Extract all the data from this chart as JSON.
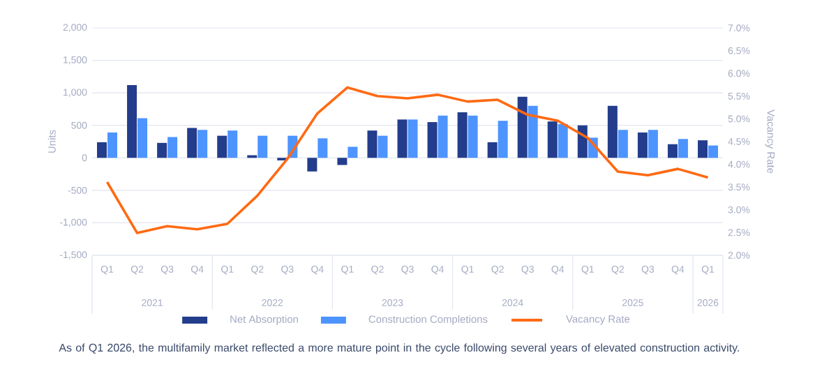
{
  "chart_data": {
    "type": "bar",
    "categories": [
      "Q1",
      "Q2",
      "Q3",
      "Q4",
      "Q1",
      "Q2",
      "Q3",
      "Q4",
      "Q1",
      "Q2",
      "Q3",
      "Q4",
      "Q1",
      "Q2",
      "Q3",
      "Q4",
      "Q1",
      "Q2",
      "Q3",
      "Q4",
      "Q1"
    ],
    "series": [
      {
        "name": "Net Absorption",
        "color": "#233d8c",
        "values": [
          240,
          1120,
          230,
          460,
          340,
          40,
          -40,
          -210,
          -110,
          420,
          590,
          550,
          700,
          240,
          940,
          560,
          500,
          800,
          390,
          210,
          270
        ]
      },
      {
        "name": "Construction Completions",
        "color": "#4d94ff",
        "values": [
          390,
          610,
          320,
          430,
          420,
          340,
          340,
          300,
          170,
          340,
          590,
          650,
          650,
          570,
          800,
          520,
          310,
          430,
          430,
          290,
          190
        ]
      },
      {
        "name": "Vacancy Rate",
        "color": "#ff6a13",
        "type": "line",
        "axis": "y2",
        "values": [
          3.61,
          2.49,
          2.64,
          2.57,
          2.69,
          3.31,
          4.12,
          5.12,
          5.69,
          5.5,
          5.45,
          5.53,
          5.38,
          5.42,
          5.09,
          4.96,
          4.58,
          3.84,
          3.76,
          3.9,
          3.71
        ]
      }
    ],
    "ylabel": "Units",
    "y2label": "Vacancy Rate",
    "ylim": [
      -1500,
      2000
    ],
    "yticks": [
      {
        "value": -1500,
        "label": "-1,500"
      },
      {
        "value": -1000,
        "label": "-1,000"
      },
      -500,
      0,
      500,
      {
        "value": 1000,
        "label": "1,000"
      },
      {
        "value": 1500,
        "label": "1,500"
      },
      {
        "value": 2000,
        "label": "2,000"
      }
    ],
    "y2lim": [
      2,
      7
    ],
    "y2ticks": [
      {
        "value": 2,
        "label": "2.0%"
      },
      {
        "value": 2.5,
        "label": "2.5%"
      },
      {
        "value": 3,
        "label": "3.0%"
      },
      {
        "value": 3.5,
        "label": "3.5%"
      },
      {
        "value": 4,
        "label": "4.0%"
      },
      {
        "value": 4.5,
        "label": "4.5%"
      },
      {
        "value": 5,
        "label": "5.0%"
      },
      {
        "value": 5.5,
        "label": "5.5%"
      },
      {
        "value": 6,
        "label": "6.0%"
      },
      {
        "value": 6.5,
        "label": "6.5%"
      },
      {
        "value": 7,
        "label": "7.0%"
      }
    ],
    "annotations": [
      "2021",
      "2022",
      "2023",
      "2024",
      "2025",
      "2026",
      "As of Q1 2026, the multifamily market reflected a more mature point in the cycle following several years of elevated construction activity."
    ],
    "grid": "y",
    "legend": "bottom"
  }
}
